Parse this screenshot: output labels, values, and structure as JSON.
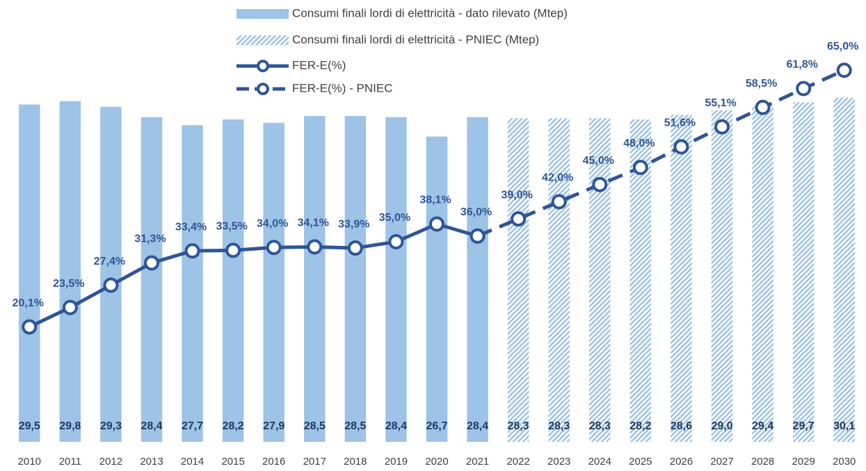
{
  "chart_data": {
    "type": "bar_line",
    "categories": [
      "2010",
      "2011",
      "2012",
      "2013",
      "2014",
      "2015",
      "2016",
      "2017",
      "2018",
      "2019",
      "2020",
      "2021",
      "2022",
      "2023",
      "2024",
      "2025",
      "2026",
      "2027",
      "2028",
      "2029",
      "2030"
    ],
    "ylim": [
      0,
      35
    ],
    "y2lim": [
      0,
      70
    ],
    "series": [
      {
        "name": "Consumi finali lordi di elettricità - dato rilevato (Mtep)",
        "kind": "bar",
        "color": "#9dc3e6",
        "values": [
          29.5,
          29.8,
          29.3,
          28.4,
          27.7,
          28.2,
          27.9,
          28.5,
          28.5,
          28.4,
          26.7,
          28.4,
          null,
          null,
          null,
          null,
          null,
          null,
          null,
          null,
          null
        ],
        "value_labels": [
          "29,5",
          "29,8",
          "29,3",
          "28,4",
          "27,7",
          "28,2",
          "27,9",
          "28,5",
          "28,5",
          "28,4",
          "26,7",
          "28,4",
          null,
          null,
          null,
          null,
          null,
          null,
          null,
          null,
          null
        ]
      },
      {
        "name": "Consumi finali lordi di elettricità - PNIEC (Mtep)",
        "kind": "bar",
        "hatch": true,
        "color": "#9dc3e6",
        "values": [
          null,
          null,
          null,
          null,
          null,
          null,
          null,
          null,
          null,
          null,
          null,
          null,
          28.3,
          28.3,
          28.3,
          28.2,
          28.6,
          29.0,
          29.4,
          29.7,
          30.1
        ],
        "value_labels": [
          null,
          null,
          null,
          null,
          null,
          null,
          null,
          null,
          null,
          null,
          null,
          null,
          "28,3",
          "28,3",
          "28,3",
          "28,2",
          "28,6",
          "29,0",
          "29,4",
          "29,7",
          "30,1"
        ]
      },
      {
        "name": "FER-E(%)",
        "kind": "line",
        "axis": "y2",
        "color": "#2f5597",
        "values": [
          20.1,
          23.5,
          27.4,
          31.3,
          33.4,
          33.5,
          34.0,
          34.1,
          33.9,
          35.0,
          38.1,
          36.0,
          null,
          null,
          null,
          null,
          null,
          null,
          null,
          null,
          null
        ],
        "value_labels": [
          "20,1%",
          "23,5%",
          "27,4%",
          "31,3%",
          "33,4%",
          "33,5%",
          "34,0%",
          "34,1%",
          "33,9%",
          "35,0%",
          "38,1%",
          "36,0%",
          null,
          null,
          null,
          null,
          null,
          null,
          null,
          null,
          null
        ]
      },
      {
        "name": "FER-E(%) - PNIEC",
        "kind": "line",
        "dashed": true,
        "axis": "y2",
        "color": "#2f5597",
        "values": [
          null,
          null,
          null,
          null,
          null,
          null,
          null,
          null,
          null,
          null,
          null,
          36.0,
          39.0,
          42.0,
          45.0,
          48.0,
          51.6,
          55.1,
          58.5,
          61.8,
          65.0
        ],
        "value_labels": [
          null,
          null,
          null,
          null,
          null,
          null,
          null,
          null,
          null,
          null,
          null,
          null,
          "39,0%",
          "42,0%",
          "45,0%",
          "48,0%",
          "51,6%",
          "55,1%",
          "58,5%",
          "61,8%",
          "65,0%"
        ]
      }
    ]
  }
}
